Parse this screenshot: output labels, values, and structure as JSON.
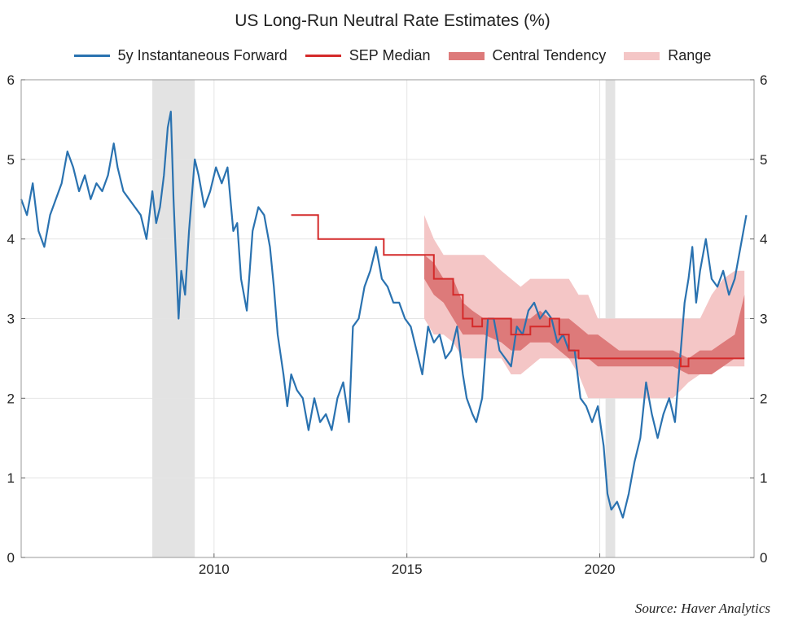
{
  "chart_data": {
    "type": "line",
    "title": "US Long-Run Neutral Rate Estimates (%)",
    "xlabel": "",
    "ylabel": "",
    "xlim": [
      2005.0,
      2024.0
    ],
    "ylim": [
      0,
      6
    ],
    "x_ticks": [
      2010,
      2015,
      2020
    ],
    "x_tick_labels": [
      "2010",
      "2015",
      "2020"
    ],
    "y_ticks": [
      0,
      1,
      2,
      3,
      4,
      5,
      6
    ],
    "y_tick_labels": [
      "0",
      "1",
      "2",
      "3",
      "4",
      "5",
      "6"
    ],
    "right_axis_mirrors_left": true,
    "grid": true,
    "legend_position": "top",
    "shaded_periods": [
      {
        "start": 2008.4,
        "end": 2009.5
      },
      {
        "start": 2020.15,
        "end": 2020.4
      }
    ],
    "series": [
      {
        "name": "5y Instantaneous Forward",
        "kind": "line",
        "color": "#2a72b0",
        "x": [
          2005.0,
          2005.15,
          2005.3,
          2005.45,
          2005.6,
          2005.75,
          2005.9,
          2006.05,
          2006.2,
          2006.35,
          2006.5,
          2006.65,
          2006.8,
          2006.95,
          2007.1,
          2007.25,
          2007.4,
          2007.5,
          2007.65,
          2007.8,
          2007.95,
          2008.1,
          2008.25,
          2008.4,
          2008.5,
          2008.6,
          2008.7,
          2008.8,
          2008.88,
          2008.95,
          2009.0,
          2009.08,
          2009.15,
          2009.25,
          2009.35,
          2009.5,
          2009.6,
          2009.75,
          2009.9,
          2010.05,
          2010.2,
          2010.35,
          2010.5,
          2010.6,
          2010.7,
          2010.85,
          2011.0,
          2011.15,
          2011.3,
          2011.45,
          2011.55,
          2011.65,
          2011.8,
          2011.9,
          2012.0,
          2012.15,
          2012.3,
          2012.45,
          2012.6,
          2012.75,
          2012.9,
          2013.05,
          2013.2,
          2013.35,
          2013.5,
          2013.6,
          2013.75,
          2013.9,
          2014.05,
          2014.2,
          2014.35,
          2014.5,
          2014.65,
          2014.8,
          2014.95,
          2015.1,
          2015.25,
          2015.4,
          2015.55,
          2015.7,
          2015.85,
          2016.0,
          2016.15,
          2016.3,
          2016.45,
          2016.55,
          2016.7,
          2016.8,
          2016.95,
          2017.1,
          2017.25,
          2017.4,
          2017.55,
          2017.7,
          2017.85,
          2018.0,
          2018.15,
          2018.3,
          2018.45,
          2018.6,
          2018.75,
          2018.9,
          2019.05,
          2019.2,
          2019.35,
          2019.5,
          2019.65,
          2019.8,
          2019.95,
          2020.1,
          2020.2,
          2020.3,
          2020.45,
          2020.6,
          2020.75,
          2020.9,
          2021.05,
          2021.2,
          2021.35,
          2021.5,
          2021.65,
          2021.8,
          2021.95,
          2022.1,
          2022.2,
          2022.3,
          2022.4,
          2022.5,
          2022.6,
          2022.75,
          2022.9,
          2023.05,
          2023.2,
          2023.35,
          2023.5,
          2023.65,
          2023.8
        ],
        "values": [
          4.5,
          4.3,
          4.7,
          4.1,
          3.9,
          4.3,
          4.5,
          4.7,
          5.1,
          4.9,
          4.6,
          4.8,
          4.5,
          4.7,
          4.6,
          4.8,
          5.2,
          4.9,
          4.6,
          4.5,
          4.4,
          4.3,
          4.0,
          4.6,
          4.2,
          4.4,
          4.8,
          5.4,
          5.6,
          4.5,
          3.9,
          3.0,
          3.6,
          3.3,
          4.1,
          5.0,
          4.8,
          4.4,
          4.6,
          4.9,
          4.7,
          4.9,
          4.1,
          4.2,
          3.5,
          3.1,
          4.1,
          4.4,
          4.3,
          3.9,
          3.4,
          2.8,
          2.3,
          1.9,
          2.3,
          2.1,
          2.0,
          1.6,
          2.0,
          1.7,
          1.8,
          1.6,
          2.0,
          2.2,
          1.7,
          2.9,
          3.0,
          3.4,
          3.6,
          3.9,
          3.5,
          3.4,
          3.2,
          3.2,
          3.0,
          2.9,
          2.6,
          2.3,
          2.9,
          2.7,
          2.8,
          2.5,
          2.6,
          2.9,
          2.3,
          2.0,
          1.8,
          1.7,
          2.0,
          3.0,
          3.0,
          2.6,
          2.5,
          2.4,
          2.9,
          2.8,
          3.1,
          3.2,
          3.0,
          3.1,
          3.0,
          2.7,
          2.8,
          2.6,
          2.6,
          2.0,
          1.9,
          1.7,
          1.9,
          1.4,
          0.8,
          0.6,
          0.7,
          0.5,
          0.8,
          1.2,
          1.5,
          2.2,
          1.8,
          1.5,
          1.8,
          2.0,
          1.7,
          2.6,
          3.2,
          3.5,
          3.9,
          3.2,
          3.6,
          4.0,
          3.5,
          3.4,
          3.6,
          3.3,
          3.5,
          3.9,
          4.3
        ]
      },
      {
        "name": "SEP Median",
        "kind": "step",
        "color": "#d42a2a",
        "x": [
          2012.0,
          2012.3,
          2012.5,
          2012.7,
          2013.6,
          2014.1,
          2014.4,
          2015.2,
          2015.45,
          2015.7,
          2015.95,
          2016.2,
          2016.45,
          2016.7,
          2016.95,
          2017.2,
          2017.45,
          2017.7,
          2017.95,
          2018.2,
          2018.45,
          2018.7,
          2018.95,
          2019.2,
          2019.45,
          2019.7,
          2019.95,
          2020.5,
          2021.5,
          2021.9,
          2022.1,
          2022.3,
          2022.5,
          2022.75,
          2023.0,
          2023.3,
          2023.5,
          2023.75
        ],
        "values": [
          4.3,
          4.3,
          4.3,
          4.0,
          4.0,
          4.0,
          3.8,
          3.8,
          3.8,
          3.5,
          3.5,
          3.3,
          3.0,
          2.9,
          3.0,
          3.0,
          3.0,
          2.8,
          2.8,
          2.9,
          2.9,
          3.0,
          2.8,
          2.6,
          2.5,
          2.5,
          2.5,
          2.5,
          2.5,
          2.5,
          2.4,
          2.5,
          2.5,
          2.5,
          2.5,
          2.5,
          2.5,
          2.5
        ]
      },
      {
        "name": "Central Tendency",
        "kind": "band",
        "color": "#dd7a7a",
        "x": [
          2015.45,
          2015.7,
          2015.95,
          2016.2,
          2016.45,
          2016.7,
          2017.0,
          2017.45,
          2017.7,
          2017.95,
          2018.2,
          2018.45,
          2018.7,
          2018.95,
          2019.2,
          2019.45,
          2019.7,
          2019.95,
          2020.5,
          2021.5,
          2021.9,
          2022.3,
          2022.6,
          2022.9,
          2023.2,
          2023.5,
          2023.75
        ],
        "lower": [
          3.5,
          3.3,
          3.2,
          3.0,
          2.8,
          2.8,
          2.8,
          2.7,
          2.6,
          2.6,
          2.7,
          2.7,
          2.7,
          2.6,
          2.5,
          2.5,
          2.5,
          2.4,
          2.4,
          2.4,
          2.4,
          2.3,
          2.3,
          2.3,
          2.4,
          2.5,
          2.5
        ],
        "upper": [
          3.8,
          3.7,
          3.5,
          3.5,
          3.2,
          3.1,
          3.0,
          3.0,
          3.0,
          3.0,
          3.0,
          3.1,
          3.0,
          3.0,
          3.0,
          2.9,
          2.8,
          2.8,
          2.6,
          2.6,
          2.6,
          2.5,
          2.6,
          2.6,
          2.7,
          2.8,
          3.3
        ]
      },
      {
        "name": "Range",
        "kind": "band",
        "color": "#f4c6c6",
        "x": [
          2015.45,
          2015.7,
          2015.95,
          2016.2,
          2016.45,
          2016.7,
          2017.0,
          2017.45,
          2017.7,
          2017.95,
          2018.2,
          2018.45,
          2018.7,
          2018.95,
          2019.2,
          2019.45,
          2019.7,
          2019.95,
          2020.5,
          2021.5,
          2021.9,
          2022.3,
          2022.6,
          2022.9,
          2023.2,
          2023.5,
          2023.75
        ],
        "lower": [
          3.0,
          2.8,
          2.8,
          2.7,
          2.5,
          2.5,
          2.5,
          2.5,
          2.3,
          2.3,
          2.4,
          2.5,
          2.5,
          2.5,
          2.5,
          2.3,
          2.0,
          2.0,
          2.0,
          2.0,
          2.0,
          2.2,
          2.3,
          2.3,
          2.4,
          2.4,
          2.4
        ],
        "upper": [
          4.3,
          4.0,
          3.8,
          3.8,
          3.8,
          3.8,
          3.8,
          3.6,
          3.5,
          3.4,
          3.5,
          3.5,
          3.5,
          3.5,
          3.5,
          3.3,
          3.3,
          3.0,
          3.0,
          3.0,
          3.0,
          3.0,
          3.0,
          3.3,
          3.5,
          3.6,
          3.6
        ]
      }
    ],
    "source": "Source: Haver Analytics"
  },
  "colors": {
    "blue": "#2a72b0",
    "red": "#d42a2a",
    "central": "#dd7a7a",
    "range": "#f4c6c6",
    "recession": "#e3e3e3"
  }
}
